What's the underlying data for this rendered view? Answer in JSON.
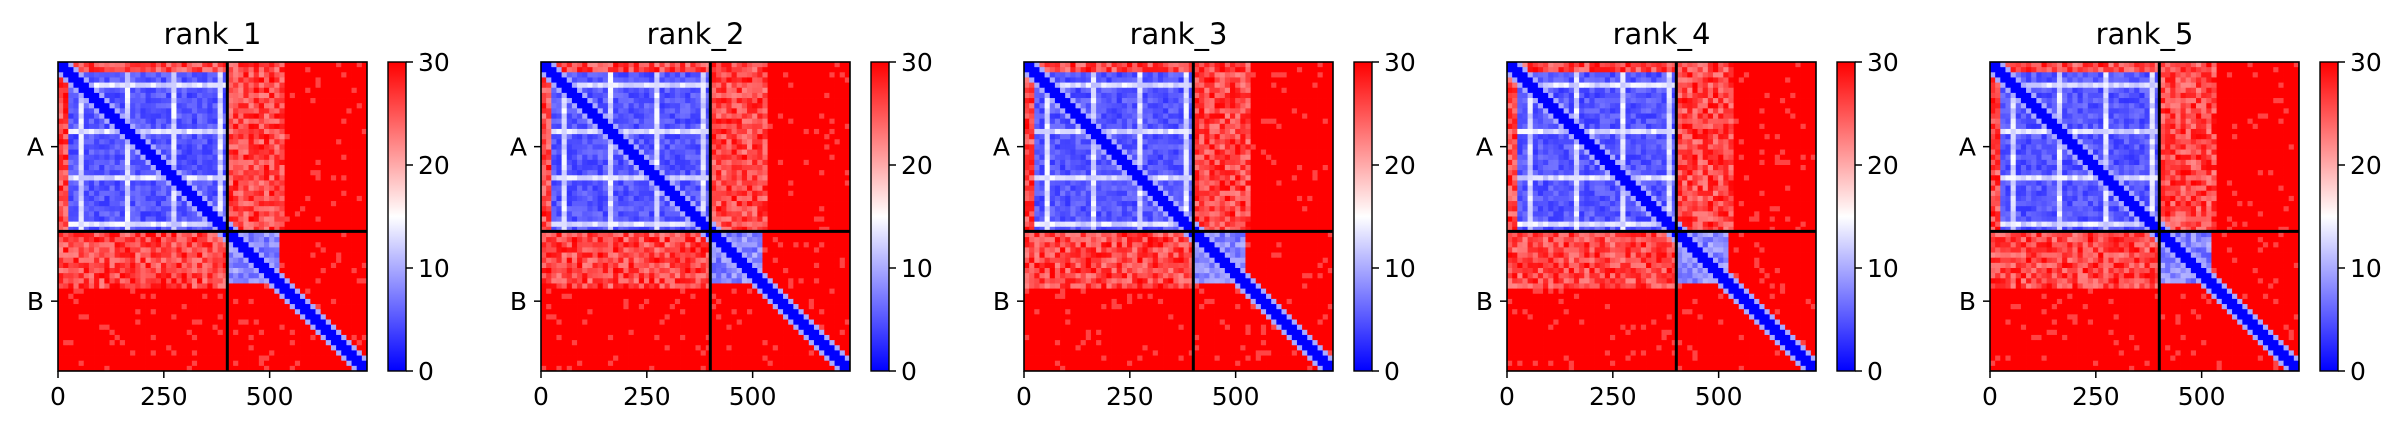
{
  "chart_data": {
    "type": "heatmap",
    "panels": [
      {
        "title": "rank_1"
      },
      {
        "title": "rank_2"
      },
      {
        "title": "rank_3"
      },
      {
        "title": "rank_4"
      },
      {
        "title": "rank_5"
      }
    ],
    "chains": [
      {
        "label": "A",
        "start": 0,
        "end": 400
      },
      {
        "label": "B",
        "start": 400,
        "end": 730
      }
    ],
    "xlim": [
      0,
      730
    ],
    "ylim": [
      730,
      0
    ],
    "x_ticks": [
      {
        "value": 0,
        "label": "0"
      },
      {
        "value": 250,
        "label": "250"
      },
      {
        "value": 500,
        "label": "500"
      }
    ],
    "y_ticks": [
      {
        "value": 200,
        "label": "A"
      },
      {
        "value": 565,
        "label": "B"
      }
    ],
    "colorbar": {
      "vmin": 0,
      "vmax": 30,
      "ticks": [
        {
          "value": 0,
          "label": "0"
        },
        {
          "value": 10,
          "label": "10"
        },
        {
          "value": 20,
          "label": "20"
        },
        {
          "value": 30,
          "label": "30"
        }
      ],
      "colors": [
        "#0000ff",
        "#ffffff",
        "#ff0000"
      ]
    },
    "matrix_structure": {
      "grid": 60,
      "domains": [
        {
          "start": 0,
          "end": 530,
          "value": 5,
          "spread": 3
        }
      ],
      "core_start": 0,
      "core_end": 400,
      "second_domain": {
        "start": 400,
        "end": 520,
        "value": 5
      },
      "background_value": 30,
      "diagonal_value": 0
    }
  }
}
